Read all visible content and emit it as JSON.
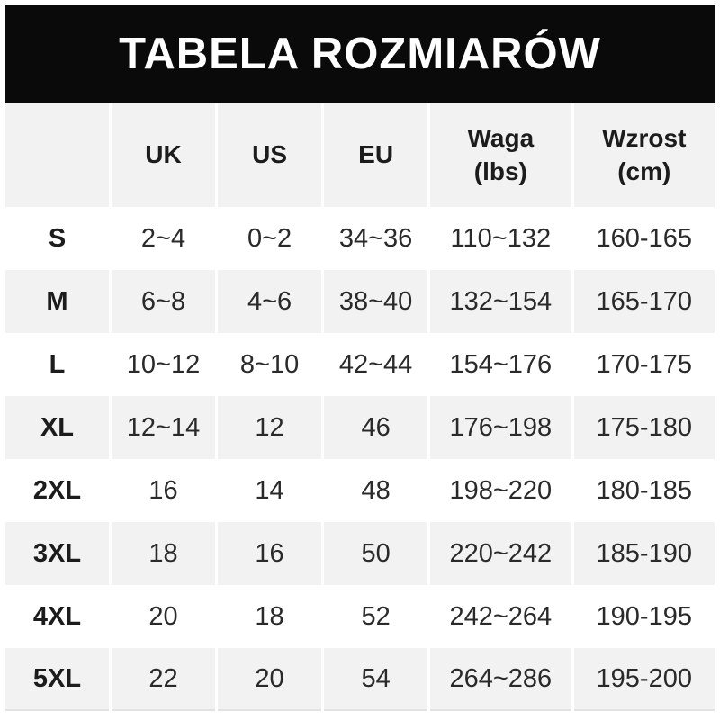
{
  "title": "TABELA ROZMIARÓW",
  "colors": {
    "banner_bg": "#0a0a0a",
    "banner_text": "#ffffff",
    "alt_row_bg": "#f2f2f2",
    "row_bg": "#ffffff",
    "text": "#1c1c1c"
  },
  "chart_data": {
    "type": "table",
    "title": "TABELA ROZMIARÓW",
    "header": [
      {
        "label": ""
      },
      {
        "label": "UK"
      },
      {
        "label": "US"
      },
      {
        "label": "EU"
      },
      {
        "label": "Waga",
        "sub": "(lbs)"
      },
      {
        "label": "Wzrost",
        "sub": "(cm)"
      }
    ],
    "rows": [
      {
        "size": "S",
        "uk": "2~4",
        "us": "0~2",
        "eu": "34~36",
        "waga": "110~132",
        "wzrost": "160-165"
      },
      {
        "size": "M",
        "uk": "6~8",
        "us": "4~6",
        "eu": "38~40",
        "waga": "132~154",
        "wzrost": "165-170"
      },
      {
        "size": "L",
        "uk": "10~12",
        "us": "8~10",
        "eu": "42~44",
        "waga": "154~176",
        "wzrost": "170-175"
      },
      {
        "size": "XL",
        "uk": "12~14",
        "us": "12",
        "eu": "46",
        "waga": "176~198",
        "wzrost": "175-180"
      },
      {
        "size": "2XL",
        "uk": "16",
        "us": "14",
        "eu": "48",
        "waga": "198~220",
        "wzrost": "180-185"
      },
      {
        "size": "3XL",
        "uk": "18",
        "us": "16",
        "eu": "50",
        "waga": "220~242",
        "wzrost": "185-190"
      },
      {
        "size": "4XL",
        "uk": "20",
        "us": "18",
        "eu": "52",
        "waga": "242~264",
        "wzrost": "190-195"
      },
      {
        "size": "5XL",
        "uk": "22",
        "us": "20",
        "eu": "54",
        "waga": "264~286",
        "wzrost": "195-200"
      }
    ]
  }
}
